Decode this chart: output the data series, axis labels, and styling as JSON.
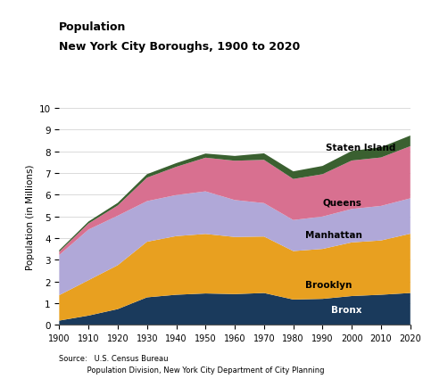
{
  "title_line1": "Population",
  "title_line2": "New York City Boroughs, 1900 to 2020",
  "years": [
    1900,
    1910,
    1920,
    1930,
    1940,
    1950,
    1960,
    1970,
    1980,
    1990,
    2000,
    2010,
    2020
  ],
  "bronx": [
    0.2,
    0.43,
    0.73,
    1.27,
    1.39,
    1.45,
    1.42,
    1.47,
    1.17,
    1.2,
    1.33,
    1.39,
    1.47
  ],
  "brooklyn": [
    1.17,
    1.63,
    2.02,
    2.56,
    2.7,
    2.74,
    2.63,
    2.6,
    2.23,
    2.3,
    2.47,
    2.5,
    2.73
  ],
  "manhattan": [
    1.85,
    2.33,
    2.28,
    1.87,
    1.89,
    1.96,
    1.7,
    1.54,
    1.43,
    1.49,
    1.54,
    1.59,
    1.63
  ],
  "queens": [
    0.15,
    0.28,
    0.47,
    1.08,
    1.3,
    1.55,
    1.81,
    1.99,
    1.89,
    1.95,
    2.23,
    2.23,
    2.4
  ],
  "staten_island": [
    0.07,
    0.09,
    0.12,
    0.16,
    0.17,
    0.19,
    0.22,
    0.3,
    0.35,
    0.38,
    0.44,
    0.47,
    0.49
  ],
  "colors": {
    "bronx": "#1a3a5c",
    "brooklyn": "#e8a020",
    "manhattan": "#b0a8d8",
    "queens": "#d87090",
    "staten_island": "#3a6030"
  },
  "ylabel": "Population (in Millions)",
  "ylim": [
    0,
    10
  ],
  "yticks": [
    0,
    1,
    2,
    3,
    4,
    5,
    6,
    7,
    8,
    9,
    10
  ],
  "source_line1": "Source:   U.S. Census Bureau",
  "source_line2": "            Population Division, New York City Department of City Planning",
  "background_color": "#ffffff",
  "label_fontsize": 7.5,
  "title_fontsize": 9
}
